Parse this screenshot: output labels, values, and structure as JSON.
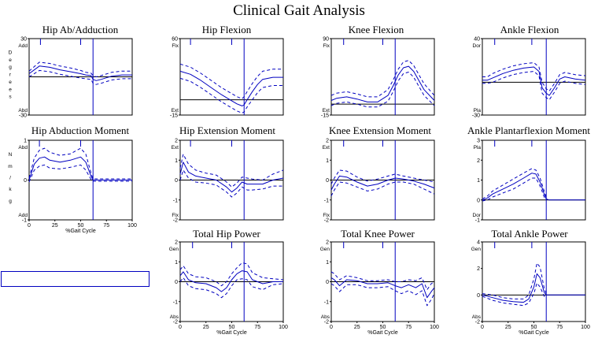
{
  "page": {
    "title": "Clinical Gait Analysis"
  },
  "colors": {
    "trace": "#0000c0",
    "axis": "#000000",
    "background": "#ffffff"
  },
  "legend_box": {
    "label": ""
  },
  "chart_data": [
    {
      "type": "line",
      "title": "Hip Ab/Adduction",
      "ylim": [
        -30,
        30
      ],
      "yticks": [
        "30",
        "-30"
      ],
      "xticks": [],
      "xlabel": "",
      "top_label": "Add",
      "bottom_label": "Abd",
      "vertical_label": "Degrees",
      "zero_line": 0,
      "toe_off": 62,
      "events": [
        11,
        50
      ],
      "x": [
        0,
        10,
        20,
        30,
        40,
        50,
        55,
        60,
        62,
        65,
        70,
        80,
        90,
        100
      ],
      "series": [
        {
          "values": [
            2.5,
            8.5,
            7.5,
            5.5,
            4,
            2.5,
            1.5,
            1,
            -2,
            -3,
            -2,
            0.5,
            1.5,
            1.5
          ]
        },
        {
          "values": [
            4.5,
            11.5,
            10.5,
            8.5,
            7,
            5,
            3.5,
            3,
            1,
            0,
            1,
            3.5,
            4.5,
            4.5
          ]
        },
        {
          "values": [
            0,
            5,
            4,
            2,
            0.5,
            -1,
            -1.5,
            -2,
            -5,
            -6,
            -5,
            -2.5,
            -1.5,
            -1.5
          ]
        }
      ]
    },
    {
      "type": "line",
      "title": "Hip Flexion",
      "ylim": [
        -15,
        60
      ],
      "yticks": [
        "60",
        "-15"
      ],
      "xticks": [],
      "xlabel": "",
      "top_label": "Flx",
      "bottom_label": "Ext",
      "zero_line": 0,
      "toe_off": 62,
      "events": [
        10,
        50
      ],
      "x": [
        0,
        10,
        20,
        30,
        40,
        50,
        55,
        60,
        62,
        65,
        70,
        75,
        80,
        90,
        100
      ],
      "series": [
        {
          "values": [
            28,
            25,
            19,
            12,
            5,
            -1,
            -4,
            -6,
            -5,
            0,
            8,
            15,
            20,
            22,
            22
          ]
        },
        {
          "values": [
            35,
            32,
            26,
            19,
            12,
            6,
            3,
            1,
            3,
            8,
            16,
            23,
            28,
            30,
            30
          ]
        },
        {
          "values": [
            21,
            18,
            12,
            5,
            -2,
            -8,
            -11,
            -13,
            -12,
            -7,
            0,
            7,
            12,
            14,
            14
          ]
        }
      ]
    },
    {
      "type": "line",
      "title": "Knee Flexion",
      "ylim": [
        -15,
        90
      ],
      "yticks": [
        "90",
        "-15"
      ],
      "xticks": [],
      "xlabel": "",
      "top_label": "Flx",
      "bottom_label": "Ext",
      "zero_line": 0,
      "toe_off": 62,
      "events": [
        12,
        50
      ],
      "x": [
        0,
        5,
        15,
        25,
        35,
        45,
        55,
        60,
        65,
        70,
        75,
        80,
        90,
        100
      ],
      "series": [
        {
          "values": [
            5,
            8,
            10,
            7,
            3,
            3,
            12,
            25,
            40,
            50,
            52,
            45,
            20,
            5
          ]
        },
        {
          "values": [
            12,
            15,
            17,
            14,
            10,
            10,
            20,
            33,
            48,
            58,
            60,
            53,
            28,
            12
          ]
        },
        {
          "values": [
            -2,
            1,
            3,
            0,
            -4,
            -4,
            4,
            17,
            32,
            42,
            44,
            37,
            12,
            -2
          ]
        }
      ]
    },
    {
      "type": "line",
      "title": "Ankle Flexion",
      "ylim": [
        -30,
        40
      ],
      "yticks": [
        "40",
        "-30"
      ],
      "xticks": [],
      "xlabel": "",
      "top_label": "Dor",
      "bottom_label": "Pla",
      "zero_line": 0,
      "toe_off": 62,
      "events": [
        12,
        48
      ],
      "x": [
        0,
        5,
        10,
        20,
        30,
        40,
        50,
        55,
        58,
        62,
        65,
        70,
        75,
        80,
        90,
        100
      ],
      "series": [
        {
          "values": [
            2,
            2,
            4,
            8,
            11,
            13,
            14,
            10,
            -5,
            -10,
            -12,
            -5,
            3,
            5,
            3,
            2
          ]
        },
        {
          "values": [
            5,
            5,
            8,
            12,
            15,
            17,
            18,
            14,
            0,
            -6,
            -8,
            -1,
            7,
            9,
            7,
            6
          ]
        },
        {
          "values": [
            -1,
            -1,
            0,
            4,
            7,
            9,
            10,
            6,
            -10,
            -14,
            -16,
            -9,
            -1,
            1,
            -1,
            -2
          ]
        }
      ]
    },
    {
      "type": "line",
      "title": "Hip Abduction Moment",
      "ylim": [
        -1,
        1
      ],
      "yticks": [
        "1",
        "0",
        "-1"
      ],
      "xticks": [
        "0",
        "25",
        "50",
        "75",
        "100"
      ],
      "xlabel": "%Gait Cycle",
      "top_label": "Abd",
      "bottom_label": "Add",
      "vertical_label": "Nm/kg",
      "zero_line": 0,
      "toe_off": 62,
      "events": [
        10,
        50
      ],
      "x": [
        0,
        5,
        10,
        15,
        20,
        30,
        40,
        50,
        55,
        60,
        62,
        65,
        75,
        85,
        100
      ],
      "series": [
        {
          "values": [
            0,
            0.4,
            0.55,
            0.58,
            0.5,
            0.45,
            0.5,
            0.58,
            0.45,
            0.1,
            0,
            0,
            0,
            0,
            0
          ]
        },
        {
          "values": [
            0.05,
            0.55,
            0.75,
            0.8,
            0.7,
            0.62,
            0.66,
            0.8,
            0.65,
            0.18,
            0.03,
            0.03,
            0.03,
            0.03,
            0.03
          ]
        },
        {
          "values": [
            -0.05,
            0.25,
            0.35,
            0.38,
            0.3,
            0.28,
            0.32,
            0.38,
            0.25,
            0.02,
            -0.03,
            -0.03,
            -0.03,
            -0.03,
            -0.03
          ]
        }
      ]
    },
    {
      "type": "line",
      "title": "Hip Extension Moment",
      "ylim": [
        -2,
        2
      ],
      "yticks": [
        "2",
        "1",
        "0",
        "-1",
        "-2"
      ],
      "xticks": [],
      "xlabel": "",
      "top_label": "Ext",
      "bottom_label": "Flx",
      "zero_line": 0,
      "toe_off": 62,
      "events": [
        10,
        50
      ],
      "x": [
        0,
        3,
        8,
        15,
        25,
        35,
        45,
        50,
        55,
        60,
        65,
        70,
        80,
        90,
        100
      ],
      "series": [
        {
          "values": [
            0.3,
            0.9,
            0.4,
            0.2,
            0.1,
            0,
            -0.35,
            -0.6,
            -0.4,
            -0.1,
            -0.2,
            -0.2,
            -0.2,
            0,
            0.1
          ]
        },
        {
          "values": [
            0.6,
            1.3,
            0.8,
            0.5,
            0.35,
            0.25,
            -0.1,
            -0.35,
            -0.15,
            0.15,
            0.1,
            0.05,
            0,
            0.3,
            0.5
          ]
        },
        {
          "values": [
            0,
            0.5,
            0.1,
            -0.1,
            -0.15,
            -0.25,
            -0.6,
            -0.85,
            -0.65,
            -0.35,
            -0.5,
            -0.5,
            -0.45,
            -0.3,
            -0.3
          ]
        }
      ]
    },
    {
      "type": "line",
      "title": "Knee Extension Moment",
      "ylim": [
        -2,
        2
      ],
      "yticks": [
        "2",
        "1",
        "0",
        "-1",
        "-2"
      ],
      "xticks": [],
      "xlabel": "",
      "top_label": "Ext",
      "bottom_label": "Flx",
      "zero_line": 0,
      "toe_off": 62,
      "events": [
        12,
        50
      ],
      "x": [
        0,
        3,
        8,
        15,
        25,
        35,
        45,
        55,
        62,
        70,
        80,
        90,
        100
      ],
      "series": [
        {
          "values": [
            -0.5,
            -0.2,
            0.2,
            0.15,
            -0.1,
            -0.3,
            -0.2,
            0,
            0.1,
            0.05,
            -0.05,
            -0.2,
            -0.4
          ]
        },
        {
          "values": [
            -0.2,
            0.1,
            0.5,
            0.45,
            0.15,
            -0.05,
            0.05,
            0.2,
            0.3,
            0.2,
            0.1,
            0,
            -0.1
          ]
        },
        {
          "values": [
            -0.8,
            -0.5,
            -0.1,
            -0.15,
            -0.35,
            -0.55,
            -0.45,
            -0.2,
            -0.1,
            -0.1,
            -0.2,
            -0.45,
            -0.7
          ]
        }
      ]
    },
    {
      "type": "line",
      "title": "Ankle Plantarflexion Moment",
      "ylim": [
        -1,
        3
      ],
      "yticks": [
        "3",
        "2",
        "1",
        "0",
        "-1"
      ],
      "xticks": [],
      "xlabel": "",
      "top_label": "Pla",
      "bottom_label": "Dor",
      "zero_line": 0,
      "toe_off": 62,
      "events": [
        12,
        48
      ],
      "x": [
        0,
        5,
        10,
        20,
        30,
        40,
        48,
        52,
        56,
        60,
        62,
        65,
        70,
        80,
        90,
        100
      ],
      "series": [
        {
          "values": [
            0,
            0.1,
            0.3,
            0.55,
            0.8,
            1.1,
            1.35,
            1.3,
            0.9,
            0.3,
            0.05,
            0,
            0,
            0,
            0,
            0
          ]
        },
        {
          "values": [
            0.05,
            0.2,
            0.45,
            0.75,
            1.05,
            1.35,
            1.58,
            1.5,
            1.1,
            0.45,
            0.12,
            null,
            null,
            null,
            null,
            null
          ]
        },
        {
          "values": [
            -0.05,
            0,
            0.15,
            0.35,
            0.55,
            0.85,
            1.1,
            1.1,
            0.7,
            0.15,
            0,
            null,
            null,
            null,
            null,
            null
          ]
        }
      ]
    },
    {
      "type": "line",
      "title": "Total Hip Power",
      "ylim": [
        -2,
        2
      ],
      "yticks": [
        "2",
        "1",
        "0",
        "-1",
        "-2"
      ],
      "xticks": [
        "0",
        "25",
        "50",
        "75",
        "100"
      ],
      "xlabel": "%Gait Cycle",
      "top_label": "Gen",
      "bottom_label": "Abs",
      "zero_line": 0,
      "toe_off": 62,
      "events": [
        12,
        50
      ],
      "x": [
        0,
        3,
        8,
        15,
        25,
        35,
        40,
        45,
        50,
        55,
        60,
        65,
        70,
        80,
        90,
        100
      ],
      "series": [
        {
          "values": [
            0.3,
            0.5,
            0.1,
            -0.05,
            -0.1,
            -0.3,
            -0.5,
            -0.3,
            0.1,
            0.4,
            0.55,
            0.5,
            0.1,
            -0.1,
            0,
            0
          ]
        },
        {
          "values": [
            0.6,
            0.8,
            0.4,
            0.25,
            0.2,
            0,
            -0.2,
            0,
            0.4,
            0.7,
            0.95,
            0.9,
            0.45,
            0.2,
            0.15,
            0.1
          ]
        },
        {
          "values": [
            0,
            0.2,
            -0.2,
            -0.35,
            -0.4,
            -0.6,
            -0.8,
            -0.6,
            -0.2,
            0.1,
            0.15,
            0.1,
            -0.25,
            -0.4,
            -0.15,
            -0.1
          ]
        }
      ]
    },
    {
      "type": "line",
      "title": "Total Knee Power",
      "ylim": [
        -2,
        2
      ],
      "yticks": [
        "2",
        "1",
        "0",
        "-1",
        "-2"
      ],
      "xticks": [
        "0",
        "25",
        "50",
        "75",
        "100"
      ],
      "xlabel": "%Gait Cycle",
      "top_label": "Gen",
      "bottom_label": "Abs",
      "zero_line": 0,
      "toe_off": 62,
      "events": [
        12,
        50
      ],
      "x": [
        0,
        3,
        8,
        15,
        25,
        35,
        45,
        55,
        62,
        68,
        75,
        82,
        88,
        93,
        97,
        100
      ],
      "series": [
        {
          "values": [
            0.2,
            0.1,
            -0.2,
            0.1,
            0.05,
            -0.1,
            -0.1,
            -0.05,
            -0.2,
            -0.3,
            -0.15,
            -0.3,
            -0.1,
            -0.8,
            -0.5,
            -0.3
          ]
        },
        {
          "values": [
            0.5,
            0.4,
            0.1,
            0.3,
            0.2,
            0.05,
            0.05,
            0.1,
            0,
            0,
            0.1,
            0.05,
            0.2,
            -0.4,
            -0.1,
            0
          ]
        },
        {
          "values": [
            -0.1,
            -0.2,
            -0.5,
            -0.15,
            -0.15,
            -0.3,
            -0.3,
            -0.25,
            -0.45,
            -0.6,
            -0.45,
            -0.65,
            -0.45,
            -1.2,
            -0.9,
            -0.6
          ]
        }
      ]
    },
    {
      "type": "line",
      "title": "Total Ankle Power",
      "ylim": [
        -2,
        4
      ],
      "yticks": [
        "4",
        "2",
        "0",
        "-2"
      ],
      "xticks": [
        "0",
        "25",
        "50",
        "75",
        "100"
      ],
      "xlabel": "%Gait Cycle",
      "top_label": "Gen",
      "bottom_label": "Abs",
      "zero_line": 0,
      "toe_off": 62,
      "events": [
        12,
        48
      ],
      "x": [
        0,
        10,
        20,
        30,
        40,
        45,
        50,
        53,
        56,
        60,
        62,
        65,
        70,
        80,
        90,
        100
      ],
      "series": [
        {
          "values": [
            0,
            -0.2,
            -0.4,
            -0.5,
            -0.55,
            -0.3,
            0.6,
            1.6,
            1.3,
            0.2,
            0,
            0,
            0,
            0,
            0,
            0
          ]
        },
        {
          "values": [
            0.1,
            0,
            -0.2,
            -0.3,
            -0.3,
            0,
            1.2,
            2.4,
            2.1,
            0.5,
            0.1,
            null,
            null,
            null,
            null,
            null
          ]
        },
        {
          "values": [
            -0.1,
            -0.4,
            -0.6,
            -0.7,
            -0.8,
            -0.6,
            0.1,
            0.9,
            0.6,
            -0.1,
            -0.1,
            null,
            null,
            null,
            null,
            null
          ]
        }
      ]
    }
  ]
}
